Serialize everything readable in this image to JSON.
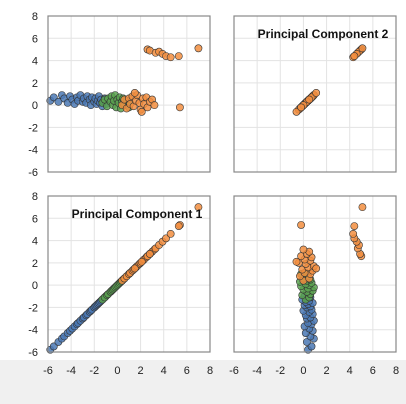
{
  "chart_data": {
    "type": "scatter",
    "layout": "pair-grid 2x2",
    "xlim": [
      -6,
      8
    ],
    "ylim": [
      -6,
      8
    ],
    "ticks": [
      "-6",
      "-4",
      "-2",
      "0",
      "2",
      "4",
      "6",
      "8"
    ],
    "grid": true,
    "colors": {
      "blue": "#4a78b4",
      "green": "#59a14f",
      "orange": "#f28e3f"
    },
    "panels": [
      {
        "position": "top-left",
        "title": "",
        "kind": "pc1_vs_pc2"
      },
      {
        "position": "top-right",
        "title": "Principal Component 2",
        "kind": "pc2_vs_pc2"
      },
      {
        "position": "bottom-left",
        "title": "Principal Component 1",
        "kind": "pc1_vs_pc1"
      },
      {
        "position": "bottom-right",
        "title": "",
        "kind": "pc2_vs_pc1"
      }
    ],
    "series": [
      {
        "color": "blue",
        "pc1": [
          -5.8,
          -5.5,
          -5.1,
          -4.8,
          -4.6,
          -4.3,
          -4.1,
          -3.9,
          -3.7,
          -3.5,
          -3.4,
          -3.2,
          -3.0,
          -2.9,
          -2.7,
          -2.6,
          -2.4,
          -2.3,
          -2.2,
          -2.0,
          -1.9,
          -1.8,
          -1.7,
          -1.6,
          -1.5,
          -1.4,
          -1.3,
          -1.2,
          -1.1,
          -1.0
        ],
        "pc2": [
          0.4,
          0.7,
          0.3,
          0.9,
          0.6,
          0.2,
          0.8,
          0.5,
          0.1,
          0.7,
          0.4,
          0.9,
          0.3,
          0.6,
          0.2,
          0.8,
          0.5,
          0.0,
          0.7,
          0.3,
          0.6,
          0.1,
          0.4,
          0.8,
          0.2,
          0.5,
          -0.1,
          0.3,
          0.6,
          0.1
        ]
      },
      {
        "color": "green",
        "pc1": [
          -1.3,
          -1.1,
          -0.9,
          -0.8,
          -0.6,
          -0.5,
          -0.4,
          -0.3,
          -0.2,
          -0.1,
          0.0,
          0.1,
          0.2,
          0.3,
          0.4,
          0.5,
          0.6,
          0.8,
          1.0,
          1.1
        ],
        "pc2": [
          0.2,
          0.5,
          -0.1,
          0.6,
          0.3,
          0.8,
          0.0,
          0.4,
          0.9,
          -0.2,
          0.5,
          0.2,
          0.7,
          -0.3,
          0.3,
          0.6,
          0.0,
          0.4,
          -0.2,
          0.2
        ]
      },
      {
        "color": "orange",
        "pc1": [
          0.4,
          0.6,
          0.8,
          1.0,
          1.1,
          1.3,
          1.4,
          1.6,
          1.7,
          1.9,
          2.0,
          2.2,
          2.3,
          2.5,
          2.6,
          2.8,
          3.0,
          3.2,
          1.5,
          2.1,
          5.4,
          2.6,
          2.8,
          3.3,
          3.6,
          3.9,
          4.2,
          4.6,
          5.3,
          7.0
        ],
        "pc2": [
          0.0,
          0.5,
          -0.3,
          0.6,
          0.1,
          0.8,
          -0.1,
          0.4,
          0.9,
          0.2,
          -0.4,
          0.6,
          0.1,
          0.7,
          -0.2,
          0.3,
          0.5,
          0.0,
          1.1,
          -0.6,
          -0.2,
          5.0,
          4.9,
          4.7,
          4.8,
          4.6,
          4.4,
          4.3,
          4.4,
          5.1
        ]
      }
    ]
  }
}
